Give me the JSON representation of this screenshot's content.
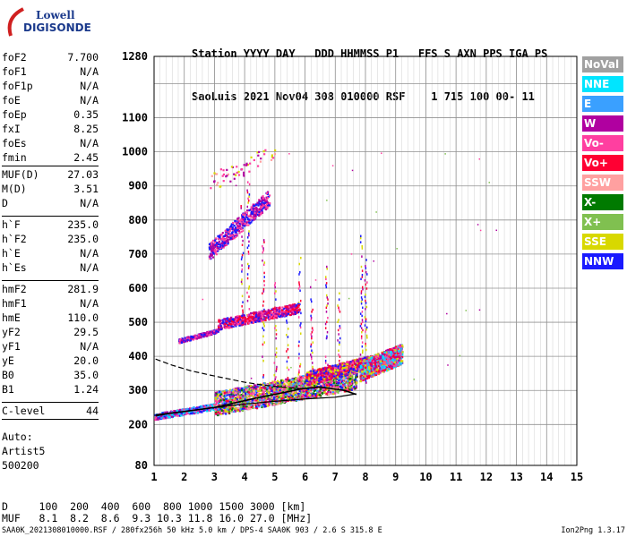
{
  "logo": {
    "line1": "Lowell",
    "line2": "DIGISONDE"
  },
  "header": {
    "labels": "Station YYYY DAY   DDD HHMMSS P1   FFS S AXN PPS IGA PS",
    "values": "SaoLuis 2021 Nov04 308 010000 RSF    1 715 100 00- 11"
  },
  "params_group1": [
    {
      "k": "foF2",
      "v": "7.700"
    },
    {
      "k": "foF1",
      "v": "N/A"
    },
    {
      "k": "foF1p",
      "v": "N/A"
    },
    {
      "k": "foE",
      "v": "N/A"
    },
    {
      "k": "foEp",
      "v": "0.35"
    },
    {
      "k": "fxI",
      "v": "8.25"
    },
    {
      "k": "foEs",
      "v": "N/A"
    },
    {
      "k": "fmin",
      "v": "2.45"
    }
  ],
  "params_group2": [
    {
      "k": "MUF(D)",
      "v": "27.03"
    },
    {
      "k": "M(D)",
      "v": "3.51"
    },
    {
      "k": "D",
      "v": "N/A"
    }
  ],
  "params_group3": [
    {
      "k": "h`F",
      "v": "235.0"
    },
    {
      "k": "h`F2",
      "v": "235.0"
    },
    {
      "k": "h`E",
      "v": "N/A"
    },
    {
      "k": "h`Es",
      "v": "N/A"
    }
  ],
  "params_group4": [
    {
      "k": "hmF2",
      "v": "281.9"
    },
    {
      "k": "hmF1",
      "v": "N/A"
    },
    {
      "k": "hmE",
      "v": "110.0"
    },
    {
      "k": "yF2",
      "v": "29.5"
    },
    {
      "k": "yF1",
      "v": "N/A"
    },
    {
      "k": "yE",
      "v": "20.0"
    },
    {
      "k": "B0",
      "v": "35.0"
    },
    {
      "k": "B1",
      "v": "1.24"
    }
  ],
  "params_group5": [
    {
      "k": "C-level",
      "v": "44"
    }
  ],
  "auto": {
    "line1": "Auto:",
    "line2": "Artist5",
    "line3": "500200"
  },
  "muf_table": {
    "d_row": "D     100  200  400  600  800 1000 1500 3000 [km]",
    "muf_row": "MUF   8.1  8.2  8.6  9.3 10.3 11.8 16.0 27.0 [MHz]"
  },
  "footer": {
    "left": "SAA0K_2021308010000.RSF / 280fx256h 50 kHz 5.0 km / DPS-4 SAA0K 903 / 2.6 S 315.8 E",
    "right": "Ion2Png 1.3.17"
  },
  "legend": [
    {
      "label": "NoVal",
      "color": "#a0a0a0"
    },
    {
      "label": "NNE",
      "color": "#00e5ff"
    },
    {
      "label": "E",
      "color": "#3aa0ff"
    },
    {
      "label": "W",
      "color": "#b000a0"
    },
    {
      "label": "Vo-",
      "color": "#ff3fa0"
    },
    {
      "label": "Vo+",
      "color": "#ff0033"
    },
    {
      "label": "SSW",
      "color": "#ffa0a0"
    },
    {
      "label": "X-",
      "color": "#007a00"
    },
    {
      "label": "X+",
      "color": "#80c050"
    },
    {
      "label": "SSE",
      "color": "#d8d800"
    },
    {
      "label": "NNW",
      "color": "#1a1aff"
    }
  ],
  "chart_data": {
    "type": "scatter",
    "title": "",
    "xlabel": "",
    "ylabel": "",
    "xlim": [
      1,
      15
    ],
    "ylim": [
      80,
      1280
    ],
    "x_ticks": [
      1,
      2,
      3,
      4,
      5,
      6,
      7,
      8,
      9,
      10,
      11,
      12,
      13,
      14,
      15
    ],
    "y_ticks_labeled": [
      80,
      200,
      300,
      400,
      500,
      600,
      700,
      800,
      900,
      1000,
      1100,
      1280
    ],
    "y_grid": [
      80,
      200,
      300,
      400,
      500,
      600,
      700,
      800,
      900,
      1000,
      1100,
      1200,
      1280
    ],
    "grid": true,
    "x_fine_step": 0.2,
    "virtual_height_trace": [
      {
        "x": 1.05,
        "y": 225
      },
      {
        "x": 1.5,
        "y": 232
      },
      {
        "x": 2.0,
        "y": 238
      },
      {
        "x": 3.0,
        "y": 250
      },
      {
        "x": 4.0,
        "y": 260
      },
      {
        "x": 5.0,
        "y": 268
      },
      {
        "x": 6.0,
        "y": 275
      },
      {
        "x": 7.0,
        "y": 280
      },
      {
        "x": 7.7,
        "y": 290
      }
    ],
    "profile_solid": [
      {
        "x": 1.05,
        "y": 228
      },
      {
        "x": 2.0,
        "y": 238
      },
      {
        "x": 3.0,
        "y": 250
      },
      {
        "x": 3.6,
        "y": 262
      },
      {
        "x": 4.4,
        "y": 278
      },
      {
        "x": 5.2,
        "y": 292
      },
      {
        "x": 5.9,
        "y": 305
      },
      {
        "x": 6.5,
        "y": 310
      },
      {
        "x": 7.3,
        "y": 300
      },
      {
        "x": 7.7,
        "y": 288
      }
    ],
    "profile_dashed": [
      {
        "x": 1.05,
        "y": 392
      },
      {
        "x": 1.6,
        "y": 374
      },
      {
        "x": 2.2,
        "y": 358
      },
      {
        "x": 2.8,
        "y": 346
      },
      {
        "x": 3.4,
        "y": 335
      },
      {
        "x": 4.0,
        "y": 324
      },
      {
        "x": 4.6,
        "y": 316
      },
      {
        "x": 5.2,
        "y": 310
      },
      {
        "x": 5.9,
        "y": 305
      }
    ],
    "echo_clusters": [
      {
        "x0": 1.0,
        "x1": 3.0,
        "yc0": 222,
        "yc1": 252,
        "spread": 18,
        "n": 420,
        "colors": [
          "#1a1aff",
          "#b000a0",
          "#ff3fa0",
          "#3aa0ff",
          "#00e5ff"
        ]
      },
      {
        "x0": 3.0,
        "x1": 7.7,
        "yc0": 252,
        "yc1": 330,
        "spread": 70,
        "n": 2200,
        "colors": [
          "#ff3fa0",
          "#ff0033",
          "#b000a0",
          "#007a00",
          "#1a1aff",
          "#d8d800",
          "#80c050",
          "#ffa0a0",
          "#3aa0ff"
        ]
      },
      {
        "x0": 6.0,
        "x1": 8.2,
        "yc0": 330,
        "yc1": 380,
        "spread": 40,
        "n": 900,
        "colors": [
          "#ff0033",
          "#ff3fa0",
          "#d8d800",
          "#b000a0",
          "#1a1aff"
        ]
      },
      {
        "x0": 7.8,
        "x1": 9.2,
        "yc0": 350,
        "yc1": 400,
        "spread": 60,
        "n": 900,
        "colors": [
          "#00e5ff",
          "#3aa0ff",
          "#ff3fa0",
          "#d8d800",
          "#b000a0",
          "#ff0033"
        ]
      },
      {
        "x0": 1.8,
        "x1": 3.1,
        "yc0": 445,
        "yc1": 475,
        "spread": 12,
        "n": 300,
        "colors": [
          "#1a1aff",
          "#b000a0",
          "#ff3fa0"
        ]
      },
      {
        "x0": 3.1,
        "x1": 5.8,
        "yc0": 490,
        "yc1": 540,
        "spread": 30,
        "n": 600,
        "colors": [
          "#ff3fa0",
          "#b000a0",
          "#ff0033",
          "#1a1aff"
        ]
      },
      {
        "x0": 2.8,
        "x1": 4.8,
        "yc0": 700,
        "yc1": 860,
        "spread": 50,
        "n": 500,
        "colors": [
          "#b000a0",
          "#1a1aff",
          "#ff3fa0"
        ]
      },
      {
        "x0": 2.8,
        "x1": 5.0,
        "yc0": 900,
        "yc1": 1000,
        "spread": 60,
        "n": 60,
        "colors": [
          "#b000a0",
          "#ff3fa0",
          "#d8d800",
          "#ffa0a0"
        ]
      }
    ],
    "echo_columns": [
      {
        "x": 3.9,
        "y0": 520,
        "y1": 850
      },
      {
        "x": 4.1,
        "y0": 500,
        "y1": 920
      },
      {
        "x": 4.6,
        "y0": 300,
        "y1": 780
      },
      {
        "x": 5.0,
        "y0": 300,
        "y1": 620
      },
      {
        "x": 5.4,
        "y0": 280,
        "y1": 560
      },
      {
        "x": 5.8,
        "y0": 320,
        "y1": 700
      },
      {
        "x": 6.2,
        "y0": 300,
        "y1": 620
      },
      {
        "x": 6.7,
        "y0": 300,
        "y1": 680
      },
      {
        "x": 7.1,
        "y0": 300,
        "y1": 600
      },
      {
        "x": 7.85,
        "y0": 330,
        "y1": 760
      },
      {
        "x": 8.0,
        "y0": 320,
        "y1": 690
      }
    ]
  }
}
